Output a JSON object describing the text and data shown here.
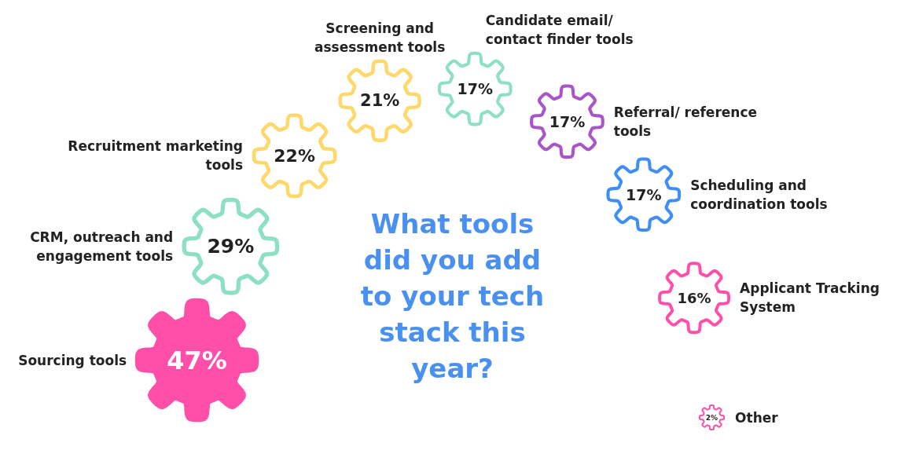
{
  "chart_data": {
    "type": "other",
    "title": "What tools did you add to your tech stack this year?",
    "categories": [
      "Sourcing tools",
      "CRM, outreach and engagement tools",
      "Recruitment marketing tools",
      "Screening and assessment tools",
      "Candidate email/ contact finder tools",
      "Referral/ reference tools",
      "Scheduling and coordination tools",
      "Applicant Tracking System",
      "Other"
    ],
    "values": [
      47,
      29,
      22,
      21,
      17,
      17,
      17,
      16,
      2
    ],
    "value_labels": [
      "47%",
      "29%",
      "22%",
      "21%",
      "17%",
      "17%",
      "17%",
      "16%",
      "2%"
    ],
    "colors": [
      "#ff4fa8",
      "#8ee0c4",
      "#ffd86b",
      "#ffd86b",
      "#8ee0c4",
      "#a855c8",
      "#3f8ef5",
      "#ff4fa8",
      "#ff4fa8"
    ]
  }
}
